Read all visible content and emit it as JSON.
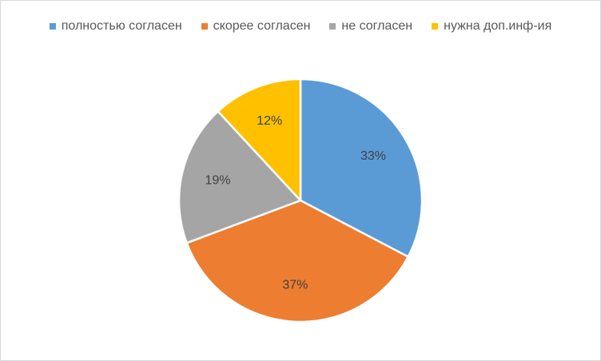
{
  "chart_data": {
    "type": "pie",
    "categories": [
      "полностью согласен",
      "скорее согласен",
      "не согласен",
      "нужна доп.инф-ия"
    ],
    "values": [
      33,
      37,
      19,
      12
    ],
    "data_labels": [
      "33%",
      "37%",
      "19%",
      "12%"
    ],
    "colors": [
      "#5b9bd5",
      "#ed7d31",
      "#a5a5a5",
      "#ffc000"
    ],
    "legend_position": "top",
    "title": ""
  }
}
